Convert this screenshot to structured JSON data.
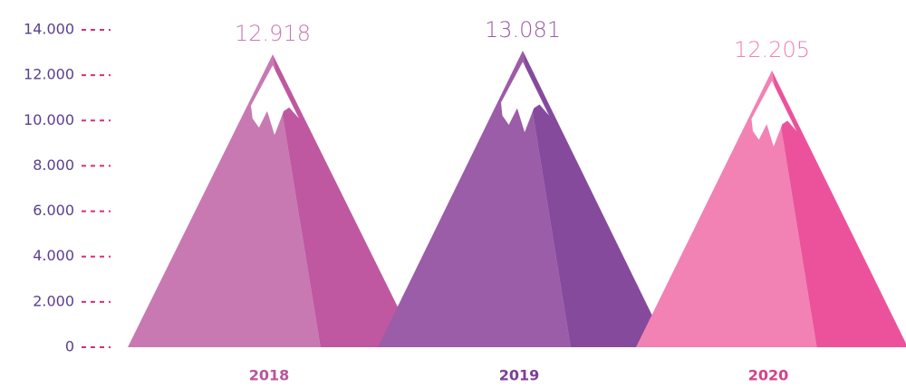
{
  "chart_data": {
    "type": "mountain",
    "categories": [
      "2018",
      "2019",
      "2020"
    ],
    "values": [
      12918,
      13081,
      12205
    ],
    "value_labels": [
      "12.918",
      "13.081",
      "12.205"
    ],
    "colors": [
      "#c879b2",
      "#9b5ca8",
      "#f282b4"
    ],
    "shade_colors": [
      "#bf58a0",
      "#864a9c",
      "#ec529c"
    ],
    "label_colors": [
      "#b9559d",
      "#7f3f98",
      "#d63f8c"
    ],
    "ylim": [
      0,
      14000
    ],
    "yticks": [
      0,
      {
        "value": 2000,
        "label": "2.000"
      },
      {
        "value": 4000,
        "label": "4.000"
      },
      {
        "value": 6000,
        "label": "6.000"
      },
      {
        "value": 8000,
        "label": "8.000"
      },
      {
        "value": 10000,
        "label": "10.000"
      },
      {
        "value": 12000,
        "label": "12.000"
      },
      {
        "value": 14000,
        "label": "14.000"
      }
    ]
  }
}
